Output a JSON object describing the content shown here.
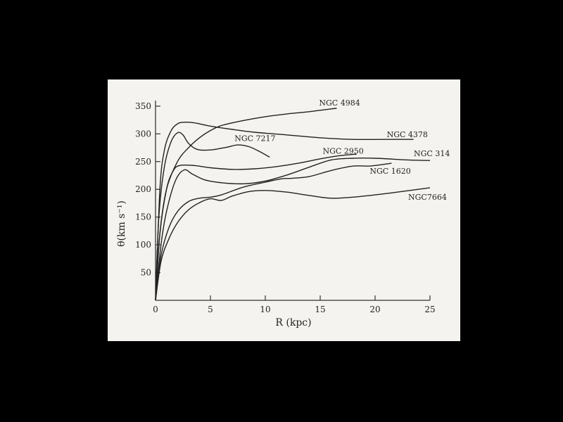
{
  "chart_data": {
    "type": "line",
    "title": "",
    "xlabel": "R (kpc)",
    "ylabel": "θ(km s⁻¹)",
    "xlim": [
      0,
      25
    ],
    "ylim": [
      0,
      360
    ],
    "x_ticks": [
      0,
      5,
      10,
      15,
      20,
      25
    ],
    "y_ticks": [
      50,
      100,
      150,
      200,
      250,
      300,
      350
    ],
    "grid": false,
    "legend": "inline labels at curve ends",
    "series": [
      {
        "name": "NGC 4984",
        "points": [
          [
            0,
            0
          ],
          [
            0.4,
            120
          ],
          [
            1,
            200
          ],
          [
            2,
            250
          ],
          [
            3,
            275
          ],
          [
            4,
            293
          ],
          [
            5,
            306
          ],
          [
            6,
            315
          ],
          [
            8,
            324
          ],
          [
            10,
            331
          ],
          [
            12,
            336
          ],
          [
            14,
            340
          ],
          [
            16,
            345
          ],
          [
            16.5,
            346
          ]
        ]
      },
      {
        "name": "NGC 4378",
        "points": [
          [
            0,
            0
          ],
          [
            0.4,
            200
          ],
          [
            0.8,
            270
          ],
          [
            1.4,
            305
          ],
          [
            2,
            318
          ],
          [
            2.6,
            321
          ],
          [
            3.5,
            320
          ],
          [
            5,
            314
          ],
          [
            7,
            308
          ],
          [
            9,
            303
          ],
          [
            12,
            298
          ],
          [
            15,
            293
          ],
          [
            18,
            290
          ],
          [
            21,
            290
          ],
          [
            23.5,
            290
          ]
        ]
      },
      {
        "name": "NGC 7217",
        "points": [
          [
            0,
            0
          ],
          [
            0.3,
            150
          ],
          [
            0.8,
            240
          ],
          [
            1.4,
            285
          ],
          [
            2,
            302
          ],
          [
            2.5,
            298
          ],
          [
            3,
            283
          ],
          [
            3.8,
            272
          ],
          [
            5,
            271
          ],
          [
            6.5,
            276
          ],
          [
            7.5,
            280
          ],
          [
            8.5,
            277
          ],
          [
            9.5,
            268
          ],
          [
            10.4,
            258
          ]
        ]
      },
      {
        "name": "NGC 2950",
        "points": [
          [
            0,
            0
          ],
          [
            0.4,
            120
          ],
          [
            1,
            200
          ],
          [
            1.6,
            233
          ],
          [
            2.2,
            243
          ],
          [
            3.5,
            243
          ],
          [
            5,
            239
          ],
          [
            7,
            236
          ],
          [
            9,
            237
          ],
          [
            11,
            241
          ],
          [
            13,
            247
          ],
          [
            15,
            255
          ],
          [
            16.5,
            260
          ],
          [
            18,
            263
          ],
          [
            18.3,
            263
          ]
        ]
      },
      {
        "name": "NGC 314",
        "points": [
          [
            0,
            0
          ],
          [
            0.5,
            100
          ],
          [
            1,
            160
          ],
          [
            1.8,
            215
          ],
          [
            2.6,
            235
          ],
          [
            3.4,
            227
          ],
          [
            4.5,
            217
          ],
          [
            6,
            212
          ],
          [
            8,
            210
          ],
          [
            10,
            215
          ],
          [
            12,
            226
          ],
          [
            14,
            240
          ],
          [
            16,
            253
          ],
          [
            18,
            256
          ],
          [
            20,
            256
          ],
          [
            23,
            253
          ],
          [
            25,
            252
          ]
        ]
      },
      {
        "name": "NGC 1620",
        "points": [
          [
            0,
            0
          ],
          [
            0.5,
            80
          ],
          [
            1.2,
            130
          ],
          [
            2,
            160
          ],
          [
            3,
            178
          ],
          [
            4,
            184
          ],
          [
            5,
            186
          ],
          [
            6,
            190
          ],
          [
            8,
            204
          ],
          [
            10,
            213
          ],
          [
            11.5,
            219
          ],
          [
            12.5,
            220
          ],
          [
            14,
            223
          ],
          [
            16,
            234
          ],
          [
            18,
            242
          ],
          [
            19.5,
            242
          ],
          [
            21.5,
            247
          ]
        ]
      },
      {
        "name": "NGC7664",
        "points": [
          [
            0,
            0
          ],
          [
            0.5,
            70
          ],
          [
            1.2,
            110
          ],
          [
            2,
            140
          ],
          [
            3,
            163
          ],
          [
            4,
            176
          ],
          [
            5,
            183
          ],
          [
            6,
            180
          ],
          [
            7,
            188
          ],
          [
            8.5,
            196
          ],
          [
            10,
            198
          ],
          [
            12,
            195
          ],
          [
            14,
            189
          ],
          [
            16,
            184
          ],
          [
            18,
            186
          ],
          [
            20,
            190
          ],
          [
            22,
            195
          ],
          [
            25,
            203
          ]
        ]
      }
    ]
  }
}
